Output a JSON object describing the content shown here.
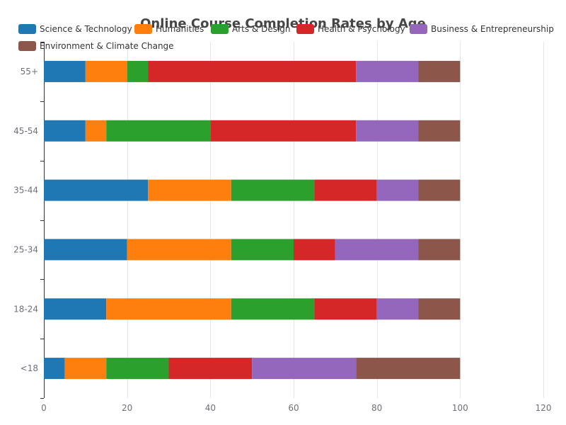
{
  "chart_data": {
    "type": "bar",
    "orientation": "horizontal",
    "stacked": true,
    "title": "Online Course Completion Rates by Age",
    "xlabel": "",
    "ylabel": "",
    "xlim": [
      0,
      120
    ],
    "x_ticks": [
      0,
      20,
      40,
      60,
      80,
      100,
      120
    ],
    "grid": true,
    "legend_position": "top",
    "categories": [
      "<18",
      "18-24",
      "25-34",
      "35-44",
      "45-54",
      "55+"
    ],
    "series": [
      {
        "name": "Science & Technology",
        "color": "#1f77b4",
        "values": [
          5,
          15,
          20,
          25,
          10,
          10
        ]
      },
      {
        "name": "Humanities",
        "color": "#ff7f0e",
        "values": [
          10,
          30,
          25,
          20,
          5,
          10
        ]
      },
      {
        "name": "Arts & Design",
        "color": "#2ca02c",
        "values": [
          15,
          20,
          15,
          20,
          25,
          5
        ]
      },
      {
        "name": "Health & Psychology",
        "color": "#d62728",
        "values": [
          20,
          15,
          10,
          15,
          35,
          50
        ]
      },
      {
        "name": "Business & Entrepreneurship",
        "color": "#9467bd",
        "values": [
          25,
          10,
          20,
          10,
          15,
          15
        ]
      },
      {
        "name": "Environment & Climate Change",
        "color": "#8c564b",
        "values": [
          25,
          10,
          10,
          10,
          10,
          10
        ]
      }
    ]
  }
}
